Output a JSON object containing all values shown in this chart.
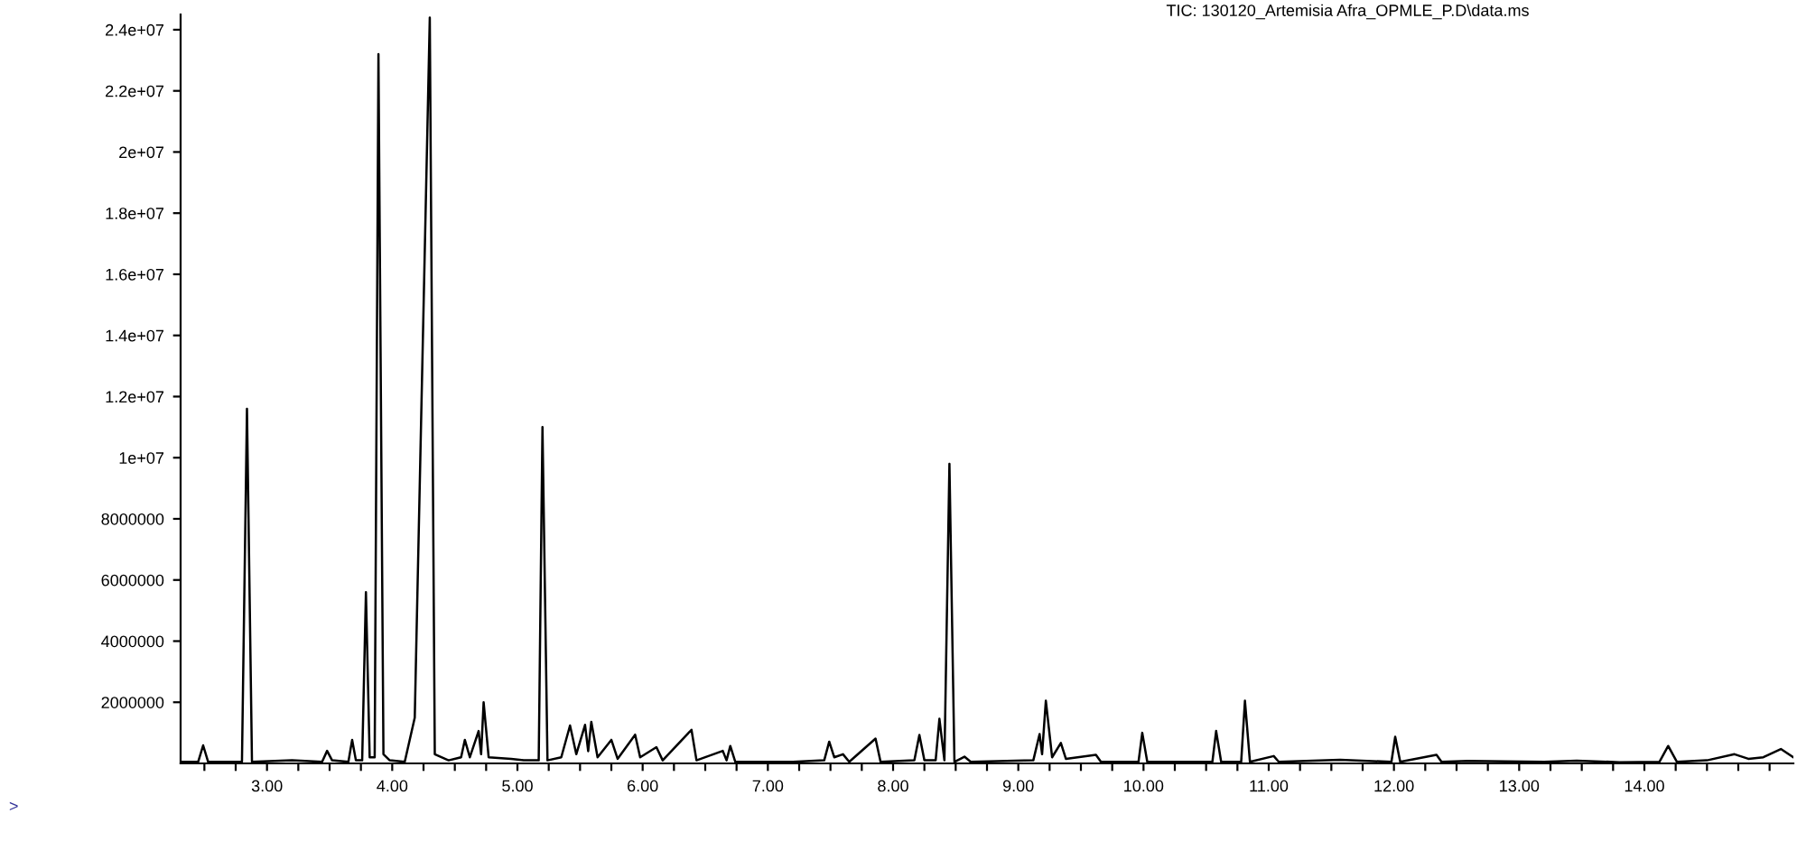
{
  "chart_data": {
    "type": "line",
    "title": "TIC: 130120_Artemisia Afra_OPMLE_P.D\\data.ms",
    "annotations": [
      ">"
    ],
    "xlim": [
      2.31,
      15.19
    ],
    "ylim": [
      0,
      24500000
    ],
    "xticks": [
      {
        "value": 2.5,
        "label": null
      },
      {
        "value": 2.75,
        "label": null
      },
      {
        "value": 3,
        "label": "3.00"
      },
      {
        "value": 3.25,
        "label": null
      },
      {
        "value": 3.5,
        "label": null
      },
      {
        "value": 3.75,
        "label": null
      },
      {
        "value": 4,
        "label": "4.00"
      },
      {
        "value": 4.25,
        "label": null
      },
      {
        "value": 4.5,
        "label": null
      },
      {
        "value": 4.75,
        "label": null
      },
      {
        "value": 5,
        "label": "5.00"
      },
      {
        "value": 5.25,
        "label": null
      },
      {
        "value": 5.5,
        "label": null
      },
      {
        "value": 5.75,
        "label": null
      },
      {
        "value": 6,
        "label": "6.00"
      },
      {
        "value": 6.25,
        "label": null
      },
      {
        "value": 6.5,
        "label": null
      },
      {
        "value": 6.75,
        "label": null
      },
      {
        "value": 7,
        "label": "7.00"
      },
      {
        "value": 7.25,
        "label": null
      },
      {
        "value": 7.5,
        "label": null
      },
      {
        "value": 7.75,
        "label": null
      },
      {
        "value": 8,
        "label": "8.00"
      },
      {
        "value": 8.25,
        "label": null
      },
      {
        "value": 8.5,
        "label": null
      },
      {
        "value": 8.75,
        "label": null
      },
      {
        "value": 9,
        "label": "9.00"
      },
      {
        "value": 9.25,
        "label": null
      },
      {
        "value": 9.5,
        "label": null
      },
      {
        "value": 9.75,
        "label": null
      },
      {
        "value": 10,
        "label": "10.00"
      },
      {
        "value": 10.25,
        "label": null
      },
      {
        "value": 10.5,
        "label": null
      },
      {
        "value": 10.75,
        "label": null
      },
      {
        "value": 11,
        "label": "11.00"
      },
      {
        "value": 11.25,
        "label": null
      },
      {
        "value": 11.5,
        "label": null
      },
      {
        "value": 11.75,
        "label": null
      },
      {
        "value": 12,
        "label": "12.00"
      },
      {
        "value": 12.25,
        "label": null
      },
      {
        "value": 12.5,
        "label": null
      },
      {
        "value": 12.75,
        "label": null
      },
      {
        "value": 13,
        "label": "13.00"
      },
      {
        "value": 13.25,
        "label": null
      },
      {
        "value": 13.5,
        "label": null
      },
      {
        "value": 13.75,
        "label": null
      },
      {
        "value": 14,
        "label": "14.00"
      },
      {
        "value": 14.25,
        "label": null
      },
      {
        "value": 14.5,
        "label": null
      },
      {
        "value": 14.75,
        "label": null
      },
      {
        "value": 15,
        "label": null
      }
    ],
    "yticks": [
      {
        "value": 2000000,
        "label": "2000000"
      },
      {
        "value": 4000000,
        "label": "4000000"
      },
      {
        "value": 6000000,
        "label": "6000000"
      },
      {
        "value": 8000000,
        "label": "8000000"
      },
      {
        "value": 10000000,
        "label": "1e+07"
      },
      {
        "value": 12000000,
        "label": "1.2e+07"
      },
      {
        "value": 14000000,
        "label": "1.4e+07"
      },
      {
        "value": 16000000,
        "label": "1.6e+07"
      },
      {
        "value": 18000000,
        "label": "1.8e+07"
      },
      {
        "value": 20000000,
        "label": "2e+07"
      },
      {
        "value": 22000000,
        "label": "2.2e+07"
      },
      {
        "value": 24000000,
        "label": "2.4e+07"
      }
    ],
    "marker": "none",
    "line_style": "solid",
    "series": [
      {
        "color": "#000000",
        "x": [
          2.31,
          2.45,
          2.49,
          2.53,
          2.8,
          2.84,
          2.88,
          3.2,
          3.44,
          3.48,
          3.52,
          3.65,
          3.68,
          3.71,
          3.76,
          3.79,
          3.82,
          3.86,
          3.89,
          3.93,
          3.98,
          4.1,
          4.18,
          4.3,
          4.34,
          4.45,
          4.55,
          4.58,
          4.62,
          4.69,
          4.71,
          4.73,
          4.77,
          4.95,
          5.05,
          5.17,
          5.2,
          5.24,
          5.35,
          5.42,
          5.47,
          5.54,
          5.565,
          5.59,
          5.64,
          5.75,
          5.8,
          5.94,
          5.98,
          6.11,
          6.16,
          6.39,
          6.43,
          6.64,
          6.67,
          6.7,
          6.74,
          7.2,
          7.45,
          7.49,
          7.53,
          7.6,
          7.65,
          7.86,
          7.9,
          8.17,
          8.21,
          8.25,
          8.34,
          8.37,
          8.41,
          8.45,
          8.49,
          8.57,
          8.62,
          9.12,
          9.17,
          9.19,
          9.22,
          9.27,
          9.34,
          9.38,
          9.62,
          9.66,
          9.96,
          9.99,
          10.03,
          10.55,
          10.58,
          10.62,
          10.78,
          10.81,
          10.85,
          11.04,
          11.08,
          11.57,
          11.98,
          12.01,
          12.05,
          12.34,
          12.38,
          12.59,
          13.2,
          13.46,
          13.8,
          14.12,
          14.19,
          14.26,
          14.5,
          14.72,
          14.83,
          14.95,
          15.09,
          15.19
        ],
        "values": [
          50000.0,
          50000.0,
          590000.0,
          50000.0,
          50000.0,
          11600000.0,
          50000.0,
          100000.0,
          50000.0,
          410000.0,
          100000.0,
          50000.0,
          770000.0,
          100000.0,
          100000.0,
          5600000.0,
          200000.0,
          200000.0,
          23200000.0,
          300000.0,
          100000.0,
          50000.0,
          1500000.0,
          24400000.0,
          300000.0,
          100000.0,
          200000.0,
          770000.0,
          200000.0,
          1060000.0,
          300000.0,
          2000000.0,
          200000.0,
          150000.0,
          100000.0,
          100000.0,
          11000000.0,
          100000.0,
          200000.0,
          1240000.0,
          300000.0,
          1260000.0,
          400000.0,
          1360000.0,
          200000.0,
          770000.0,
          150000.0,
          940000.0,
          200000.0,
          530000.0,
          100000.0,
          1100000.0,
          100000.0,
          410000.0,
          100000.0,
          570000.0,
          50000.0,
          50000.0,
          100000.0,
          710000.0,
          200000.0,
          300000.0,
          50000.0,
          810000.0,
          50000.0,
          100000.0,
          930000.0,
          100000.0,
          100000.0,
          1460000.0,
          100000.0,
          9800000.0,
          50000.0,
          220000.0,
          50000.0,
          100000.0,
          960000.0,
          300000.0,
          2050000.0,
          200000.0,
          670000.0,
          150000.0,
          280000.0,
          50000.0,
          50000.0,
          1000000.0,
          50000.0,
          50000.0,
          1060000.0,
          50000.0,
          50000.0,
          2050000.0,
          50000.0,
          240000.0,
          50000.0,
          120000.0,
          50000.0,
          870000.0,
          50000.0,
          280000.0,
          50000.0,
          80000.0,
          50000.0,
          90000.0,
          40000.0,
          50000.0,
          570000.0,
          50000.0,
          100000.0,
          300000.0,
          150000.0,
          200000.0,
          470000.0,
          200000.0
        ]
      }
    ]
  }
}
